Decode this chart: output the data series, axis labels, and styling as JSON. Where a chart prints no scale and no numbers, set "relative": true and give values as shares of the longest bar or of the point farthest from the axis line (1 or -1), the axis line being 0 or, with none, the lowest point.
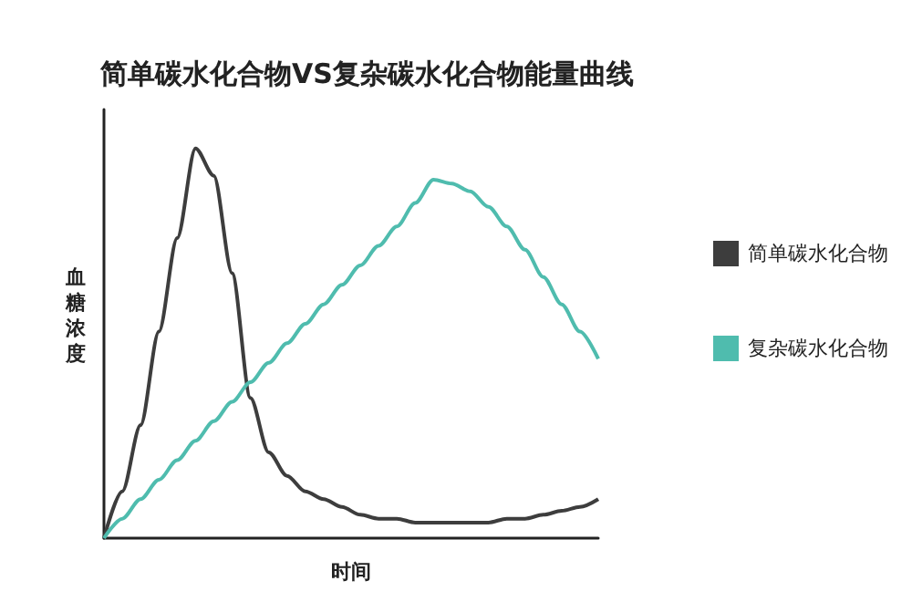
{
  "chart_data": {
    "type": "line",
    "title": "简单碳水化合物VS复杂碳水化合物能量曲线",
    "xlabel": "时间",
    "ylabel": "血糖浓度",
    "relative": true,
    "legend": "right",
    "marker": "none",
    "line_style": "solid",
    "grid": false,
    "categories": [
      null,
      null,
      null,
      null,
      null,
      null,
      null,
      null,
      null,
      null,
      null,
      null,
      null,
      null,
      null,
      null,
      null,
      null,
      null,
      null,
      null,
      null,
      null,
      null,
      null,
      null,
      null,
      null
    ],
    "series": [
      {
        "name": "简单碳水化合物",
        "color": "#3d3d3d",
        "values": [
          0,
          0.12,
          0.29,
          0.53,
          0.77,
          1,
          0.93,
          0.68,
          0.36,
          0.22,
          0.16,
          0.12,
          0.1,
          0.08,
          0.06,
          0.05,
          0.05,
          0.04,
          0.04,
          0.04,
          0.04,
          0.04,
          0.05,
          0.05,
          0.06,
          0.07,
          0.08,
          0.1
        ]
      },
      {
        "name": "复杂碳水化合物",
        "color": "#4fbcae",
        "values": [
          0,
          0.05,
          0.1,
          0.15,
          0.2,
          0.25,
          0.3,
          0.35,
          0.4,
          0.45,
          0.5,
          0.55,
          0.6,
          0.65,
          0.7,
          0.75,
          0.8,
          0.86,
          0.92,
          0.91,
          0.89,
          0.85,
          0.8,
          0.74,
          0.67,
          0.6,
          0.53,
          0.46
        ]
      }
    ]
  }
}
